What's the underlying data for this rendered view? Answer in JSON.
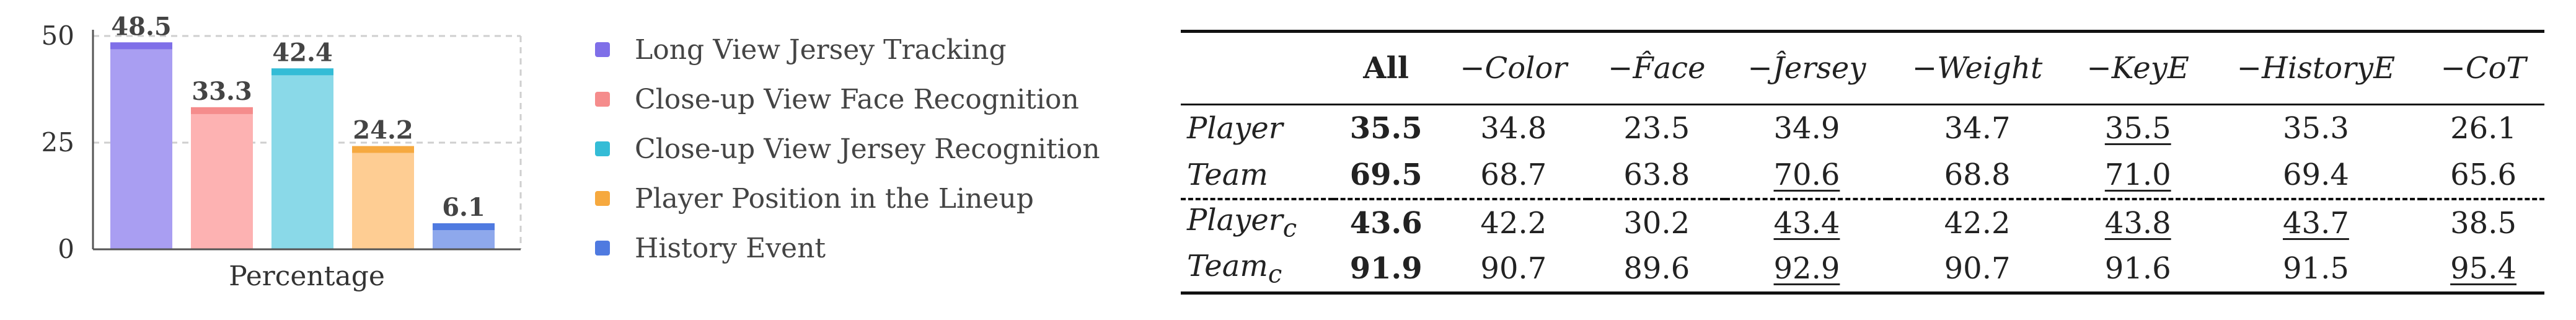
{
  "chart_data": {
    "type": "bar",
    "categories": [
      "Long View Jersey Tracking",
      "Close-up View Face Recognition",
      "Close-up View Jersey Recognition",
      "Player Position in the Lineup",
      "History Event"
    ],
    "values": [
      48.5,
      33.3,
      42.4,
      24.2,
      6.1
    ],
    "value_labels": [
      "48.5",
      "33.3",
      "42.4",
      "24.2",
      "6.1"
    ],
    "colors": [
      "#a99ef2",
      "#fdb2b2",
      "#8ad9e8",
      "#fecd93",
      "#8ea8ec"
    ],
    "cap_colors": [
      "#7f6fe8",
      "#f58c8c",
      "#34bcd6",
      "#f6a93f",
      "#4f7ae0"
    ],
    "xlabel": "Percentage",
    "ylabel": "",
    "ylim": [
      0,
      50
    ],
    "yticks": [
      "0",
      "25",
      "50"
    ],
    "grid": true,
    "legend_position": "right"
  },
  "table": {
    "headers": [
      "",
      "All",
      "−Color",
      "−F̂ace",
      "−Ĵersey",
      "−Weight",
      "−KeyE",
      "−HistoryE",
      "−CoT"
    ],
    "rows": [
      {
        "label": "Player",
        "sub": "",
        "cells": [
          "35.5",
          "34.8",
          "23.5",
          "34.9",
          "34.7",
          "35.5",
          "35.3",
          "26.1"
        ],
        "underline": [
          false,
          false,
          false,
          false,
          false,
          true,
          false,
          false
        ]
      },
      {
        "label": "Team",
        "sub": "",
        "cells": [
          "69.5",
          "68.7",
          "63.8",
          "70.6",
          "68.8",
          "71.0",
          "69.4",
          "65.6"
        ],
        "underline": [
          false,
          false,
          false,
          true,
          false,
          true,
          false,
          false
        ]
      },
      {
        "label": "Player",
        "sub": "c",
        "cells": [
          "43.6",
          "42.2",
          "30.2",
          "43.4",
          "42.2",
          "43.8",
          "43.7",
          "38.5"
        ],
        "underline": [
          false,
          false,
          false,
          true,
          false,
          true,
          true,
          false
        ]
      },
      {
        "label": "Team",
        "sub": "c",
        "cells": [
          "91.9",
          "90.7",
          "89.6",
          "92.9",
          "90.7",
          "91.6",
          "91.5",
          "95.4"
        ],
        "underline": [
          false,
          false,
          false,
          true,
          false,
          false,
          false,
          true
        ]
      }
    ]
  }
}
